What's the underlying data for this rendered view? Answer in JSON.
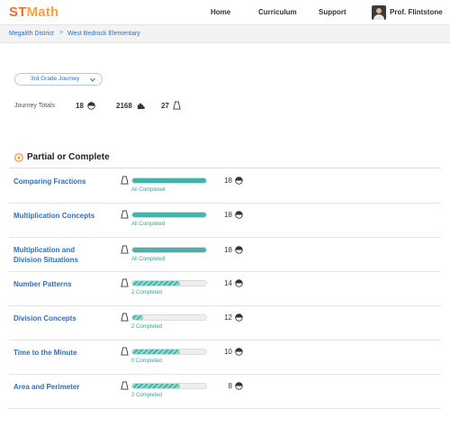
{
  "app": {
    "logo_st": "ST",
    "logo_math": "Math"
  },
  "nav": {
    "home": "Home",
    "curriculum": "Curriculum",
    "support": "Support",
    "user_name": "Prof. Flintstone"
  },
  "breadcrumb": {
    "district": "Megalith District",
    "separator": ">",
    "school": "West Bedrock Elementary"
  },
  "journey": {
    "selected": "3rd Grade Journey"
  },
  "totals": {
    "label": "Journey Totals",
    "students": "18",
    "puzzles": "2168",
    "objectives": "27"
  },
  "section": {
    "title": "Partial or Complete"
  },
  "colors": {
    "accent": "#2b6fc2",
    "progress": "#45b3aa",
    "logo_orange": "#f26b2a"
  },
  "rows": [
    {
      "name": "Comparing Fractions",
      "status": "All Completed",
      "count": "18",
      "progress": 1.0
    },
    {
      "name": "Multiplication Concepts",
      "status": "All Completed",
      "count": "18",
      "progress": 1.0
    },
    {
      "name": "Multiplication and Division Situations",
      "status": "All Completed",
      "count": "18",
      "progress": 1.0
    },
    {
      "name": "Number Patterns",
      "status": "2  Completed",
      "count": "14",
      "progress": 0.65
    },
    {
      "name": "Division Concepts",
      "status": "2  Completed",
      "count": "12",
      "progress": 0.15
    },
    {
      "name": "Time to the Minute",
      "status": "0  Completed",
      "count": "10",
      "progress": 0.65
    },
    {
      "name": "Area and Perimeter",
      "status": "2  Completed",
      "count": "8",
      "progress": 0.65
    }
  ]
}
